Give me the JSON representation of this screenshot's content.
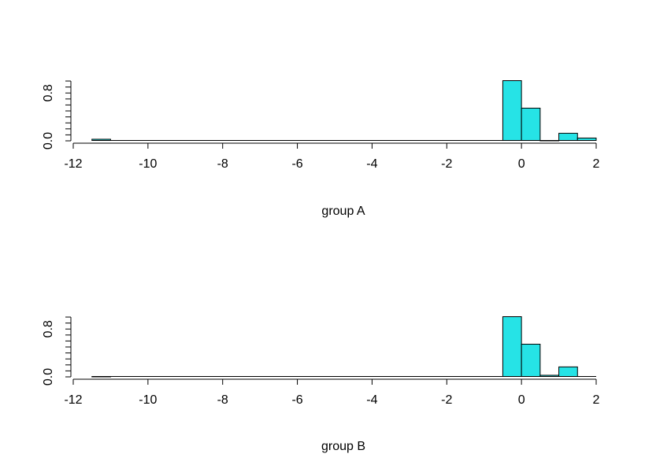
{
  "chart_data": [
    {
      "type": "bar",
      "title": "",
      "xlabel": "group A",
      "ylabel": "",
      "xlim": [
        -12,
        2
      ],
      "ylim": [
        0,
        1.0
      ],
      "x_ticks": [
        "-12",
        "-10",
        "-8",
        "-6",
        "-4",
        "-2",
        "0",
        "2"
      ],
      "y_ticks": [
        "0.0",
        "0.8"
      ],
      "bar_color": "#26E3E6",
      "bins": [
        {
          "x0": -11.5,
          "x1": -11.0,
          "value": 0.02
        },
        {
          "x0": -0.5,
          "x1": 0.0,
          "value": 1.0
        },
        {
          "x0": 0.0,
          "x1": 0.5,
          "value": 0.54
        },
        {
          "x0": 0.5,
          "x1": 1.0,
          "value": 0.0
        },
        {
          "x0": 1.0,
          "x1": 1.5,
          "value": 0.12
        },
        {
          "x0": 1.5,
          "x1": 2.0,
          "value": 0.04
        }
      ]
    },
    {
      "type": "bar",
      "title": "",
      "xlabel": "group B",
      "ylabel": "",
      "xlim": [
        -12,
        2
      ],
      "ylim": [
        0,
        1.0
      ],
      "x_ticks": [
        "-12",
        "-10",
        "-8",
        "-6",
        "-4",
        "-2",
        "0",
        "2"
      ],
      "y_ticks": [
        "0.0",
        "0.8"
      ],
      "bar_color": "#26E3E6",
      "bins": [
        {
          "x0": -11.5,
          "x1": -11.0,
          "value": 0.0
        },
        {
          "x0": -0.5,
          "x1": 0.0,
          "value": 1.0
        },
        {
          "x0": 0.0,
          "x1": 0.5,
          "value": 0.54
        },
        {
          "x0": 0.5,
          "x1": 1.0,
          "value": 0.02
        },
        {
          "x0": 1.0,
          "x1": 1.5,
          "value": 0.16
        }
      ]
    }
  ]
}
